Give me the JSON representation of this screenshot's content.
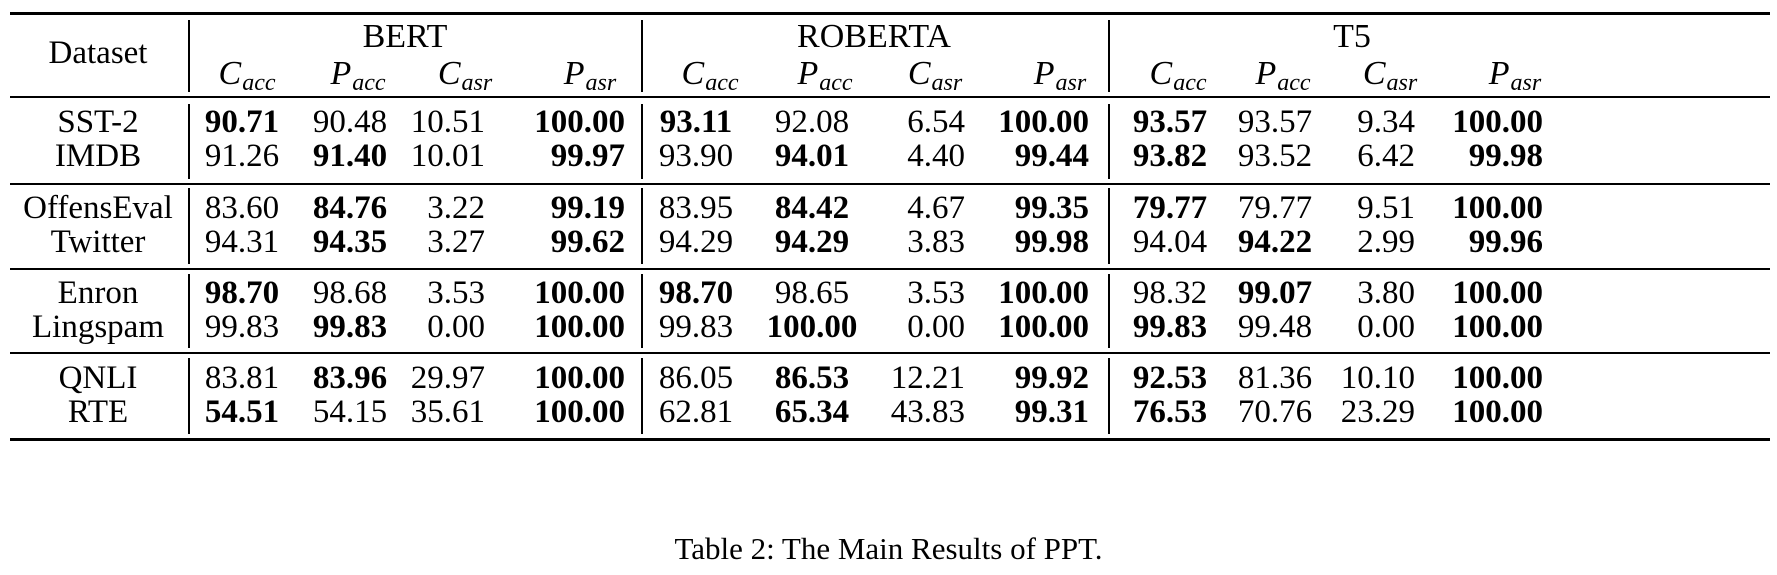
{
  "table": {
    "header": {
      "dataset_label": "Dataset",
      "models": [
        "BERT",
        "ROBERTA",
        "T5"
      ],
      "metrics": [
        {
          "base": "C",
          "sub": "acc"
        },
        {
          "base": "P",
          "sub": "acc"
        },
        {
          "base": "C",
          "sub": "asr"
        },
        {
          "base": "P",
          "sub": "asr"
        }
      ]
    },
    "groups": [
      [
        {
          "dataset": "SST-2",
          "values": [
            "90.71",
            "90.48",
            "10.51",
            "100.00",
            "93.11",
            "92.08",
            "6.54",
            "100.00",
            "93.57",
            "93.57",
            "9.34",
            "100.00"
          ],
          "bold": [
            true,
            false,
            false,
            true,
            true,
            false,
            false,
            true,
            true,
            false,
            false,
            true
          ]
        },
        {
          "dataset": "IMDB",
          "values": [
            "91.26",
            "91.40",
            "10.01",
            "99.97",
            "93.90",
            "94.01",
            "4.40",
            "99.44",
            "93.82",
            "93.52",
            "6.42",
            "99.98"
          ],
          "bold": [
            false,
            true,
            false,
            true,
            false,
            true,
            false,
            true,
            true,
            false,
            false,
            true
          ]
        }
      ],
      [
        {
          "dataset": "OffensEval",
          "values": [
            "83.60",
            "84.76",
            "3.22",
            "99.19",
            "83.95",
            "84.42",
            "4.67",
            "99.35",
            "79.77",
            "79.77",
            "9.51",
            "100.00"
          ],
          "bold": [
            false,
            true,
            false,
            true,
            false,
            true,
            false,
            true,
            true,
            false,
            false,
            true
          ]
        },
        {
          "dataset": "Twitter",
          "values": [
            "94.31",
            "94.35",
            "3.27",
            "99.62",
            "94.29",
            "94.29",
            "3.83",
            "99.98",
            "94.04",
            "94.22",
            "2.99",
            "99.96"
          ],
          "bold": [
            false,
            true,
            false,
            true,
            false,
            true,
            false,
            true,
            false,
            true,
            false,
            true
          ]
        }
      ],
      [
        {
          "dataset": "Enron",
          "values": [
            "98.70",
            "98.68",
            "3.53",
            "100.00",
            "98.70",
            "98.65",
            "3.53",
            "100.00",
            "98.32",
            "99.07",
            "3.80",
            "100.00"
          ],
          "bold": [
            true,
            false,
            false,
            true,
            true,
            false,
            false,
            true,
            false,
            true,
            false,
            true
          ]
        },
        {
          "dataset": "Lingspam",
          "values": [
            "99.83",
            "99.83",
            "0.00",
            "100.00",
            "99.83",
            "100.00",
            "0.00",
            "100.00",
            "99.83",
            "99.48",
            "0.00",
            "100.00"
          ],
          "bold": [
            false,
            true,
            false,
            true,
            false,
            true,
            false,
            true,
            true,
            false,
            false,
            true
          ]
        }
      ],
      [
        {
          "dataset": "QNLI",
          "values": [
            "83.81",
            "83.96",
            "29.97",
            "100.00",
            "86.05",
            "86.53",
            "12.21",
            "99.92",
            "92.53",
            "81.36",
            "10.10",
            "100.00"
          ],
          "bold": [
            false,
            true,
            false,
            true,
            false,
            true,
            false,
            true,
            true,
            false,
            false,
            true
          ]
        },
        {
          "dataset": "RTE",
          "values": [
            "54.51",
            "54.15",
            "35.61",
            "100.00",
            "62.81",
            "65.34",
            "43.83",
            "99.31",
            "76.53",
            "70.76",
            "23.29",
            "100.00"
          ],
          "bold": [
            true,
            false,
            false,
            true,
            false,
            true,
            false,
            true,
            true,
            false,
            false,
            true
          ]
        }
      ]
    ],
    "caption": "Table 2:  The Main Results of PPT."
  }
}
